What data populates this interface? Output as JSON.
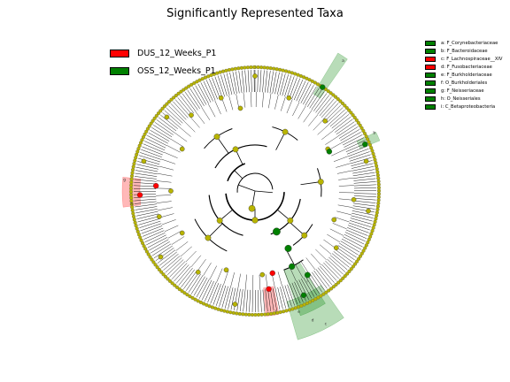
{
  "title": "Significantly Represented Taxa",
  "colors": {
    "enriched_DUS_12_Weeks_P1": "#ff0000",
    "enriched_OSS_12_Weeks_P1": "#008000",
    "non_significant_node": "#b8b400"
  },
  "chart_data": {
    "type": "cladogram",
    "title": "Significantly Represented Taxa",
    "groups": [
      {
        "name": "DUS_12_Weeks_P1",
        "color": "#ff0000"
      },
      {
        "name": "OSS_12_Weeks_P1",
        "color": "#008000"
      }
    ],
    "taxa": [
      {
        "key": "a",
        "label": "a: F_Corynebacteriaceae",
        "group": "OSS_12_Weeks_P1",
        "color": "#008000"
      },
      {
        "key": "b",
        "label": "b: F_Bacteroidaceae",
        "group": "OSS_12_Weeks_P1",
        "color": "#008000"
      },
      {
        "key": "c",
        "label": "c: F_Lachnospiraceae__XIV",
        "group": "DUS_12_Weeks_P1",
        "color": "#ff0000"
      },
      {
        "key": "d",
        "label": "d: F_Fusobacteriaceae",
        "group": "DUS_12_Weeks_P1",
        "color": "#ff0000"
      },
      {
        "key": "e",
        "label": "e: F_Burkholderiaceae",
        "group": "OSS_12_Weeks_P1",
        "color": "#008000"
      },
      {
        "key": "f",
        "label": "f: O_Burkholderiales",
        "group": "OSS_12_Weeks_P1",
        "color": "#008000"
      },
      {
        "key": "g",
        "label": "g: F_Neisseriaceae",
        "group": "OSS_12_Weeks_P1",
        "color": "#008000"
      },
      {
        "key": "h",
        "label": "h: O_Neisseriales",
        "group": "OSS_12_Weeks_P1",
        "color": "#008000"
      },
      {
        "key": "i",
        "label": "i: C_Betaproteobacteria",
        "group": "OSS_12_Weeks_P1",
        "color": "#008000"
      }
    ]
  }
}
